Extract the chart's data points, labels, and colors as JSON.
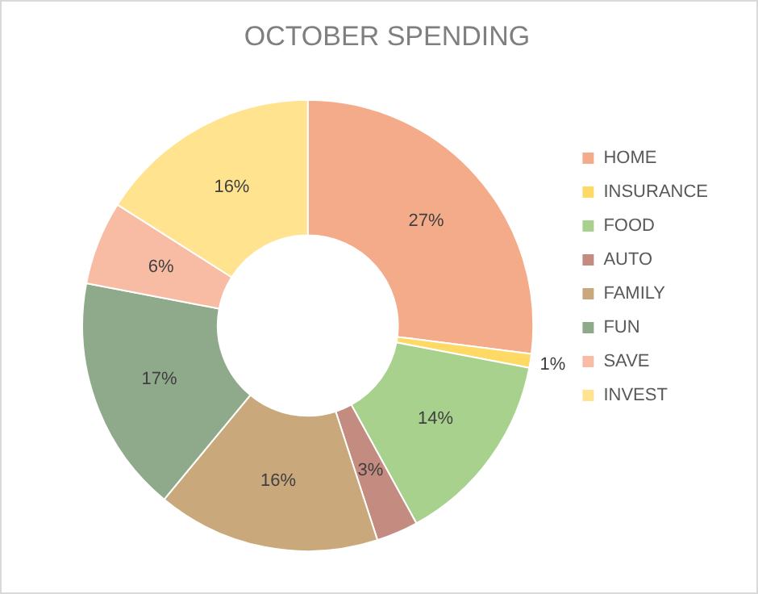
{
  "chart_data": {
    "type": "donut",
    "title": "OCTOBER SPENDING",
    "categories": [
      "HOME",
      "INSURANCE",
      "FOOD",
      "AUTO",
      "FAMILY",
      "FUN",
      "SAVE",
      "INVEST"
    ],
    "values": [
      27,
      1,
      14,
      3,
      16,
      17,
      6,
      16
    ],
    "value_labels": [
      "27%",
      "1%",
      "14%",
      "3%",
      "16%",
      "17%",
      "6%",
      "16%"
    ],
    "colors": [
      "#f4ab8a",
      "#ffd966",
      "#a9d18e",
      "#c48b80",
      "#c9a97c",
      "#8faa8a",
      "#f8bca4",
      "#ffe38f"
    ],
    "legend": "right"
  }
}
